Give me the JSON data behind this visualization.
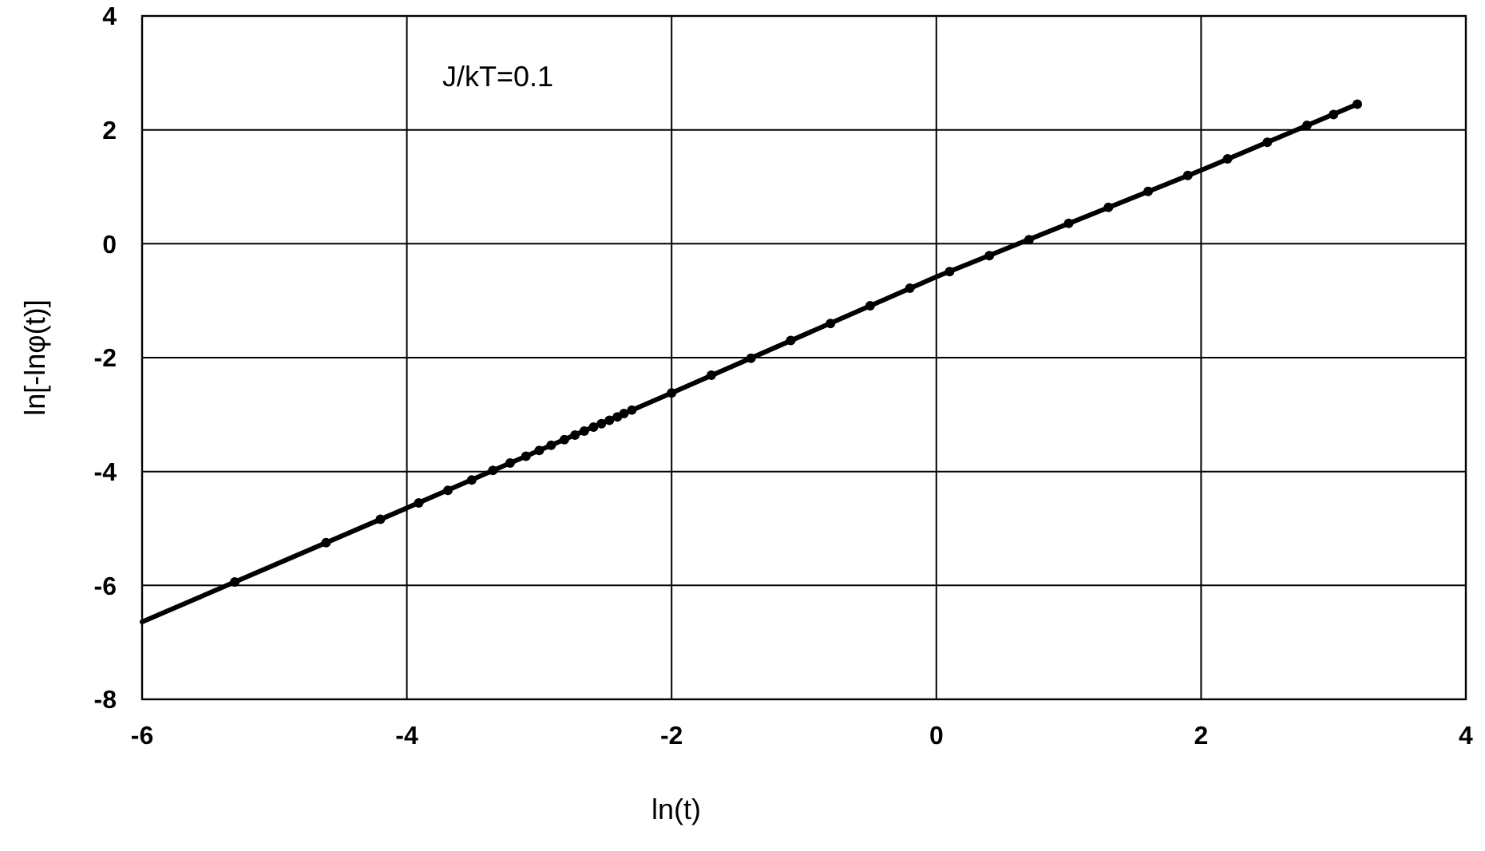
{
  "chart_data": {
    "type": "scatter",
    "xlabel": "ln(t)",
    "ylabel": "ln[-lnφ(t)]",
    "annotations": [
      "J/kT=0.1"
    ],
    "xlim": [
      -6,
      4
    ],
    "xticks": [
      -6,
      -4,
      -2,
      0,
      2,
      4
    ],
    "ylim": [
      -8,
      4
    ],
    "yticks": [
      -8,
      -6,
      -4,
      -2,
      0,
      2,
      4
    ],
    "grid": true,
    "series": [
      {
        "type": "line",
        "color": "#000000",
        "marker": "none",
        "line_style": "solid",
        "x": [
          -6,
          -4,
          -2,
          0,
          2,
          3.18
        ],
        "values": [
          -6.64,
          -4.64,
          -2.62,
          -0.58,
          1.29,
          2.45
        ]
      },
      {
        "color": "#000000",
        "marker": "circle",
        "x": [
          -5.3,
          -4.61,
          -4.2,
          -3.91,
          -3.69,
          -3.51,
          -3.35,
          -3.22,
          -3.1,
          -3.0,
          -2.91,
          -2.81,
          -2.73,
          -2.66,
          -2.59,
          -2.53,
          -2.47,
          -2.41,
          -2.36,
          -2.3,
          -2.0,
          -1.7,
          -1.4,
          -1.1,
          -0.8,
          -0.5,
          -0.2,
          0.1,
          0.4,
          0.7,
          1.0,
          1.3,
          1.6,
          1.9,
          2.2,
          2.5,
          2.8,
          3.0,
          3.18
        ],
        "values": [
          -5.94,
          -5.25,
          -4.84,
          -4.55,
          -4.33,
          -4.15,
          -3.98,
          -3.85,
          -3.73,
          -3.63,
          -3.54,
          -3.44,
          -3.36,
          -3.29,
          -3.22,
          -3.16,
          -3.1,
          -3.04,
          -2.98,
          -2.92,
          -2.62,
          -2.31,
          -2.01,
          -1.7,
          -1.4,
          -1.09,
          -0.78,
          -0.49,
          -0.21,
          0.07,
          0.36,
          0.64,
          0.92,
          1.2,
          1.49,
          1.78,
          2.08,
          2.27,
          2.45
        ]
      }
    ]
  }
}
